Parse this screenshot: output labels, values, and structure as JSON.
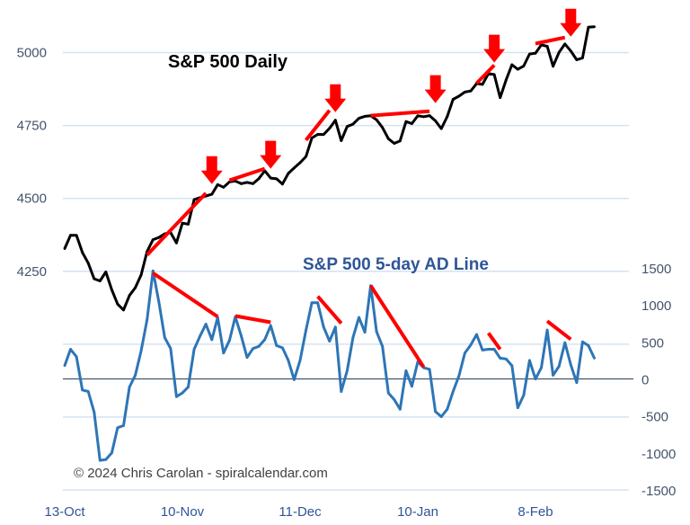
{
  "chart_data": {
    "type": "line",
    "titles": {
      "price": "S&P 500 Daily",
      "ad_line": "S&P 500 5-day AD Line"
    },
    "copyright": "© 2024 Chris Carolan - spiralcalendar.com",
    "x_axis": {
      "type": "date",
      "tick_dates": [
        "2023-10-13",
        "2023-11-10",
        "2023-12-11",
        "2024-01-10",
        "2024-02-08"
      ],
      "tick_labels": [
        "13-Oct",
        "10-Nov",
        "11-Dec",
        "10-Jan",
        "8-Feb"
      ]
    },
    "left_axis": {
      "ylim": [
        3500,
        5125
      ],
      "gridlines": [
        3500,
        3750,
        4000,
        4250,
        4500,
        4750,
        5000
      ],
      "tick_values": [
        4250,
        4500,
        4750,
        5000
      ],
      "tick_labels": [
        "4250",
        "4500",
        "4750",
        "5000"
      ]
    },
    "right_axis": {
      "ylim": [
        -1500,
        4900
      ],
      "tick_values": [
        1500,
        1000,
        500,
        0,
        -500,
        -1000,
        -1500
      ],
      "tick_labels": [
        "1500",
        "1000",
        "500",
        "0",
        "-500",
        "-1000",
        "-1500"
      ],
      "zero_line": true
    },
    "grid": true,
    "colors": {
      "price": "#000000",
      "ad_line": "#2E75B6",
      "annotations": "#FF0000",
      "grid": "#D6E2F0",
      "zero_line": "#44546A"
    },
    "dates": [
      "2023-10-13",
      "2023-10-16",
      "2023-10-17",
      "2023-10-18",
      "2023-10-19",
      "2023-10-20",
      "2023-10-23",
      "2023-10-24",
      "2023-10-25",
      "2023-10-26",
      "2023-10-27",
      "2023-10-30",
      "2023-10-31",
      "2023-11-01",
      "2023-11-02",
      "2023-11-03",
      "2023-11-06",
      "2023-11-07",
      "2023-11-08",
      "2023-11-09",
      "2023-11-10",
      "2023-11-13",
      "2023-11-14",
      "2023-11-15",
      "2023-11-16",
      "2023-11-17",
      "2023-11-20",
      "2023-11-21",
      "2023-11-22",
      "2023-11-24",
      "2023-11-27",
      "2023-11-28",
      "2023-11-29",
      "2023-11-30",
      "2023-12-01",
      "2023-12-04",
      "2023-12-05",
      "2023-12-06",
      "2023-12-07",
      "2023-12-08",
      "2023-12-11",
      "2023-12-12",
      "2023-12-13",
      "2023-12-14",
      "2023-12-15",
      "2023-12-18",
      "2023-12-19",
      "2023-12-20",
      "2023-12-21",
      "2023-12-22",
      "2023-12-26",
      "2023-12-27",
      "2023-12-28",
      "2023-12-29",
      "2024-01-02",
      "2024-01-03",
      "2024-01-04",
      "2024-01-05",
      "2024-01-08",
      "2024-01-09",
      "2024-01-10",
      "2024-01-11",
      "2024-01-12",
      "2024-01-16",
      "2024-01-17",
      "2024-01-18",
      "2024-01-19",
      "2024-01-22",
      "2024-01-23",
      "2024-01-24",
      "2024-01-25",
      "2024-01-26",
      "2024-01-29",
      "2024-01-30",
      "2024-01-31",
      "2024-02-01",
      "2024-02-02",
      "2024-02-05",
      "2024-02-06",
      "2024-02-07",
      "2024-02-08",
      "2024-02-09",
      "2024-02-12",
      "2024-02-13",
      "2024-02-14",
      "2024-02-15",
      "2024-02-16",
      "2024-02-20",
      "2024-02-21",
      "2024-02-22",
      "2024-02-23"
    ],
    "series": [
      {
        "key": "price",
        "axis": "left",
        "values": [
          4327.78,
          4373.63,
          4373.2,
          4314.6,
          4278.0,
          4224.16,
          4217.04,
          4247.68,
          4186.77,
          4137.23,
          4117.37,
          4166.82,
          4193.8,
          4237.86,
          4317.78,
          4358.34,
          4365.98,
          4378.38,
          4382.78,
          4347.35,
          4415.24,
          4411.55,
          4495.7,
          4502.88,
          4508.24,
          4514.02,
          4547.38,
          4538.19,
          4556.62,
          4559.34,
          4550.43,
          4554.89,
          4550.58,
          4567.8,
          4594.63,
          4569.78,
          4567.18,
          4549.34,
          4585.59,
          4604.37,
          4622.44,
          4643.7,
          4707.09,
          4719.55,
          4719.19,
          4740.56,
          4768.37,
          4698.35,
          4746.75,
          4754.63,
          4774.75,
          4781.58,
          4783.35,
          4769.83,
          4742.83,
          4704.81,
          4688.68,
          4697.24,
          4763.54,
          4756.5,
          4783.45,
          4780.24,
          4783.83,
          4765.98,
          4739.21,
          4780.94,
          4839.81,
          4850.43,
          4864.6,
          4868.55,
          4894.16,
          4890.97,
          4927.93,
          4924.97,
          4845.65,
          4906.19,
          4958.61,
          4942.81,
          4954.23,
          4995.06,
          4997.91,
          5026.61,
          5021.84,
          4953.17,
          5000.62,
          5029.73,
          5005.57,
          4975.51,
          4981.8,
          5087.03,
          5088.8
        ]
      },
      {
        "key": "ad_line",
        "axis": "right",
        "values": [
          180,
          400,
          300,
          -150,
          -170,
          -450,
          -1100,
          -1090,
          -1000,
          -660,
          -630,
          -110,
          50,
          380,
          800,
          1460,
          1040,
          560,
          410,
          -240,
          -190,
          -110,
          400,
          580,
          740,
          530,
          830,
          350,
          520,
          840,
          580,
          290,
          410,
          440,
          530,
          720,
          450,
          420,
          250,
          -10,
          250,
          660,
          1030,
          1030,
          700,
          510,
          700,
          -170,
          110,
          560,
          830,
          630,
          1260,
          640,
          440,
          -190,
          -280,
          -410,
          110,
          -100,
          230,
          150,
          130,
          -440,
          -510,
          -410,
          -170,
          40,
          350,
          460,
          600,
          390,
          400,
          400,
          280,
          270,
          180,
          -390,
          -220,
          250,
          0,
          150,
          660,
          50,
          170,
          490,
          190,
          -50,
          500,
          450,
          280
        ]
      }
    ],
    "annotations": {
      "price_trendlines": [
        {
          "start": "2023-11-02",
          "start_value": 4306,
          "end": "2023-11-16",
          "end_value": 4518
        },
        {
          "start": "2023-11-22",
          "start_value": 4562,
          "end": "2023-12-01",
          "end_value": 4602
        },
        {
          "start": "2023-12-12",
          "start_value": 4700,
          "end": "2023-12-18",
          "end_value": 4802
        },
        {
          "start": "2023-12-28",
          "start_value": 4784,
          "end": "2024-01-12",
          "end_value": 4799
        },
        {
          "start": "2024-01-25",
          "start_value": 4895,
          "end": "2024-01-30",
          "end_value": 4957
        },
        {
          "start": "2024-02-08",
          "start_value": 5031,
          "end": "2024-02-15",
          "end_value": 5052
        }
      ],
      "down_arrows": [
        {
          "date": "2023-11-17",
          "value": 4549
        },
        {
          "date": "2023-12-04",
          "value": 4602
        },
        {
          "date": "2023-12-19",
          "value": 4796
        },
        {
          "date": "2024-01-16",
          "value": 4827
        },
        {
          "date": "2024-01-30",
          "value": 4966
        },
        {
          "date": "2024-02-16",
          "value": 5055
        }
      ],
      "ad_trendlines": [
        {
          "start": "2023-11-03",
          "start_value": 1430,
          "end": "2023-11-20",
          "end_value": 840
        },
        {
          "start": "2023-11-24",
          "start_value": 850,
          "end": "2023-12-04",
          "end_value": 765
        },
        {
          "start": "2023-12-14",
          "start_value": 1115,
          "end": "2023-12-20",
          "end_value": 750
        },
        {
          "start": "2023-12-28",
          "start_value": 1260,
          "end": "2024-01-11",
          "end_value": 160
        },
        {
          "start": "2024-01-29",
          "start_value": 620,
          "end": "2024-01-31",
          "end_value": 400
        },
        {
          "start": "2024-02-12",
          "start_value": 780,
          "end": "2024-02-16",
          "end_value": 535
        }
      ]
    }
  }
}
